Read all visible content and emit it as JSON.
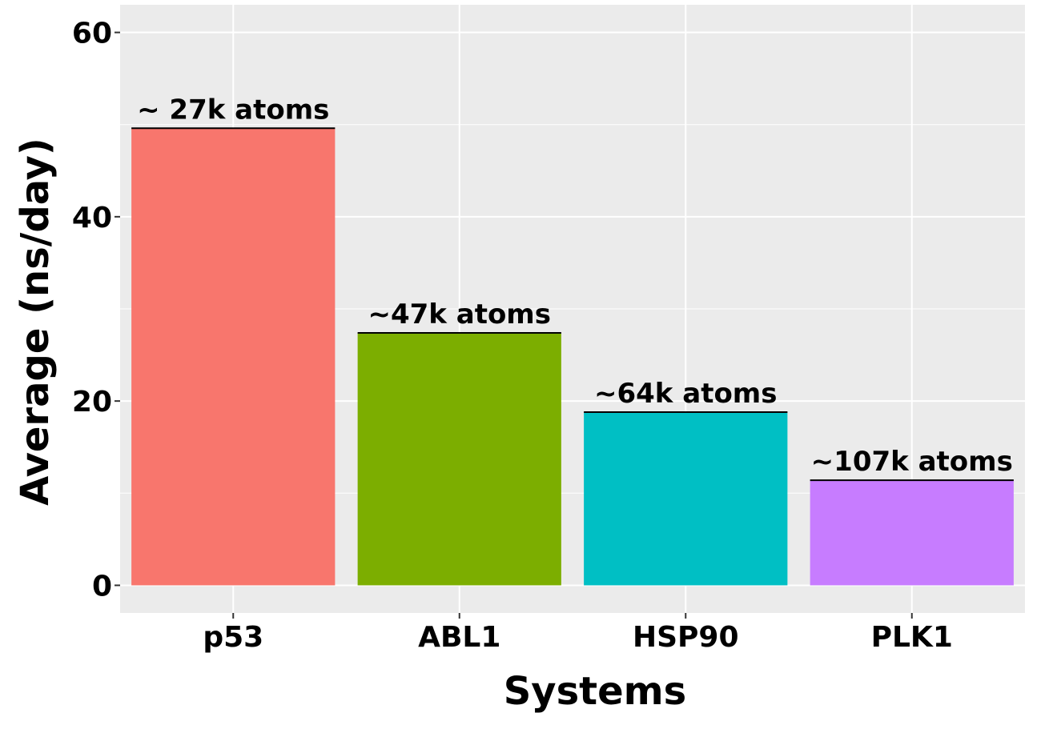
{
  "chart_data": {
    "type": "bar",
    "categories": [
      "p53",
      "ABL1",
      "HSP90",
      "PLK1"
    ],
    "values": [
      49.6,
      27.4,
      18.8,
      11.4
    ],
    "bar_labels": [
      "~ 27k atoms",
      "~47k atoms",
      "~64k atoms",
      "~107k atoms"
    ],
    "colors": [
      "#F8766D",
      "#7CAE00",
      "#00BFC4",
      "#C77CFF"
    ],
    "xlabel": "Systems",
    "ylabel": "Average (ns/day)",
    "ylim": [
      -3,
      63
    ],
    "yticks": [
      0,
      20,
      40,
      60
    ],
    "ytick_labels": [
      "0",
      "20",
      "40",
      "60"
    ],
    "grid": true,
    "panel_background": "#EBEBEB",
    "grid_color": "#FFFFFF"
  }
}
